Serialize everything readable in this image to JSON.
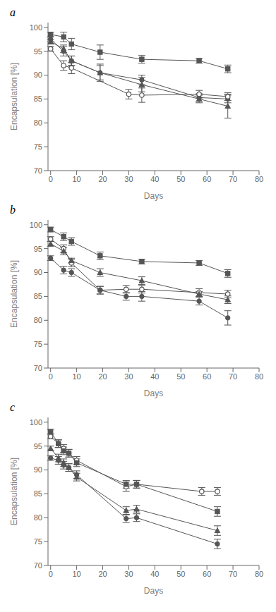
{
  "chart_data": [
    {
      "type": "line",
      "title": "a",
      "xlabel": "Days",
      "ylabel": "Encapsulation [%]",
      "xlim": [
        -1,
        80
      ],
      "xticks": [
        0,
        10,
        20,
        30,
        40,
        50,
        60,
        70,
        80
      ],
      "ylim": [
        70,
        101
      ],
      "yticks": [
        70,
        75,
        80,
        85,
        90,
        95,
        100
      ],
      "grid": false,
      "series": [
        {
          "marker": "square",
          "color": "#555555",
          "x": [
            0,
            5,
            8,
            19,
            35,
            57,
            68
          ],
          "values": [
            98.5,
            98.0,
            96.5,
            94.8,
            93.3,
            93.0,
            91.3
          ],
          "yerr": [
            0.5,
            1.0,
            1.2,
            1.5,
            0.8,
            0.5,
            0.8
          ]
        },
        {
          "marker": "circle",
          "color": "#555555",
          "x": [
            0,
            5,
            8,
            19,
            35,
            57,
            68
          ],
          "values": [
            97.5,
            95.0,
            93.0,
            90.5,
            89.0,
            85.3,
            85.0
          ],
          "yerr": [
            0.5,
            1.0,
            1.0,
            1.5,
            1.0,
            0.8,
            0.8
          ]
        },
        {
          "marker": "triangle",
          "color": "#555555",
          "x": [
            0,
            5,
            8,
            19,
            35,
            57,
            68
          ],
          "values": [
            97.0,
            95.5,
            93.0,
            90.5,
            88.0,
            85.0,
            83.5
          ],
          "yerr": [
            0.5,
            0.8,
            1.0,
            1.8,
            1.5,
            0.8,
            2.5
          ]
        },
        {
          "marker": "open_circle",
          "color": "#555555",
          "x": [
            0,
            5,
            8,
            30,
            35,
            57,
            68
          ],
          "values": [
            95.5,
            92.0,
            91.5,
            86.0,
            85.8,
            86.0,
            85.5
          ],
          "yerr": [
            0.5,
            1.0,
            1.2,
            1.0,
            1.5,
            0.8,
            0.8
          ]
        }
      ]
    },
    {
      "type": "line",
      "title": "b",
      "xlabel": "Days",
      "ylabel": "Encapsulation [%]",
      "xlim": [
        -1,
        80
      ],
      "xticks": [
        0,
        10,
        20,
        30,
        40,
        50,
        60,
        70,
        80
      ],
      "ylim": [
        70,
        101
      ],
      "yticks": [
        70,
        75,
        80,
        85,
        90,
        95,
        100
      ],
      "grid": false,
      "series": [
        {
          "marker": "square",
          "color": "#555555",
          "x": [
            0,
            5,
            8,
            19,
            35,
            57,
            68
          ],
          "values": [
            99.0,
            97.5,
            96.5,
            93.5,
            92.3,
            92.0,
            89.8
          ],
          "yerr": [
            0.5,
            0.8,
            0.8,
            0.8,
            0.5,
            0.5,
            0.8
          ]
        },
        {
          "marker": "open_circle",
          "color": "#555555",
          "x": [
            0,
            5,
            8,
            19,
            29,
            35,
            57,
            68
          ],
          "values": [
            97.0,
            95.0,
            92.0,
            86.3,
            86.5,
            86.5,
            85.8,
            85.5
          ],
          "yerr": [
            0.5,
            0.8,
            0.8,
            0.8,
            0.8,
            0.8,
            0.8,
            0.8
          ]
        },
        {
          "marker": "triangle",
          "color": "#555555",
          "x": [
            0,
            5,
            8,
            19,
            35,
            57,
            68
          ],
          "values": [
            96.0,
            94.5,
            92.5,
            90.0,
            88.3,
            85.5,
            84.3
          ],
          "yerr": [
            0.5,
            0.8,
            0.5,
            0.8,
            0.8,
            0.5,
            0.8
          ]
        },
        {
          "marker": "circle",
          "color": "#555555",
          "x": [
            0,
            5,
            8,
            19,
            29,
            35,
            57,
            68
          ],
          "values": [
            93.0,
            90.5,
            90.0,
            86.3,
            85.0,
            85.0,
            84.0,
            80.5
          ],
          "yerr": [
            0.5,
            0.8,
            0.8,
            0.8,
            0.8,
            1.0,
            0.8,
            1.5
          ]
        }
      ]
    },
    {
      "type": "line",
      "title": "c",
      "xlabel": "Days",
      "ylabel": "Encapsulation [%]",
      "xlim": [
        -1,
        80
      ],
      "xticks": [
        0,
        10,
        20,
        30,
        40,
        50,
        60,
        70,
        80
      ],
      "ylim": [
        70,
        101
      ],
      "yticks": [
        70,
        75,
        80,
        85,
        90,
        95,
        100
      ],
      "grid": false,
      "series": [
        {
          "marker": "open_circle",
          "color": "#555555",
          "x": [
            0,
            3,
            5,
            7,
            10,
            29,
            33,
            58,
            64
          ],
          "values": [
            97.0,
            95.5,
            94.5,
            93.5,
            92.0,
            86.5,
            87.0,
            85.5,
            85.5
          ],
          "yerr": [
            0.5,
            0.8,
            0.8,
            0.8,
            0.8,
            1.0,
            0.8,
            0.8,
            0.8
          ]
        },
        {
          "marker": "square",
          "color": "#555555",
          "x": [
            0,
            3,
            5,
            7,
            10,
            29,
            33,
            64
          ],
          "values": [
            98.0,
            95.5,
            94.0,
            93.5,
            91.5,
            87.0,
            87.0,
            81.3
          ],
          "yerr": [
            0.5,
            0.8,
            0.8,
            0.8,
            0.8,
            0.8,
            0.8,
            1.0
          ]
        },
        {
          "marker": "triangle",
          "color": "#555555",
          "x": [
            0,
            3,
            5,
            7,
            10,
            29,
            33,
            64
          ],
          "values": [
            94.5,
            92.5,
            91.5,
            90.5,
            88.5,
            81.5,
            81.8,
            77.3
          ],
          "yerr": [
            0.5,
            0.8,
            0.8,
            0.8,
            0.8,
            0.8,
            0.8,
            1.0
          ]
        },
        {
          "marker": "circle",
          "color": "#555555",
          "x": [
            0,
            3,
            5,
            7,
            10,
            29,
            33,
            64
          ],
          "values": [
            92.5,
            92.0,
            91.0,
            90.5,
            89.0,
            79.8,
            80.0,
            74.5
          ],
          "yerr": [
            0.5,
            0.8,
            0.8,
            0.8,
            0.8,
            0.8,
            0.8,
            1.0
          ]
        }
      ]
    }
  ]
}
